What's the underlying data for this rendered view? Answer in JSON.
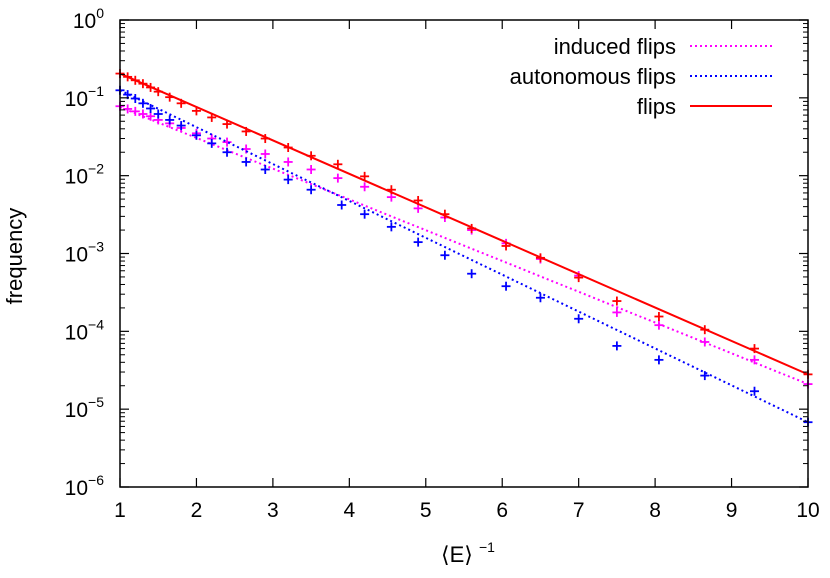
{
  "chart_data": {
    "type": "scatter",
    "title": "",
    "xlabel": "⟨E⟩",
    "xlabel_superscript": "−1",
    "ylabel": "frequency",
    "xlim": [
      1,
      10
    ],
    "ylim": [
      1e-06,
      1
    ],
    "yscale": "log",
    "x_ticks": [
      "1",
      "2",
      "3",
      "4",
      "5",
      "6",
      "7",
      "8",
      "9",
      "10"
    ],
    "y_ticks": [
      {
        "base": "10",
        "exp": "0"
      },
      {
        "base": "10",
        "exp": "−1"
      },
      {
        "base": "10",
        "exp": "−2"
      },
      {
        "base": "10",
        "exp": "−3"
      },
      {
        "base": "10",
        "exp": "−4"
      },
      {
        "base": "10",
        "exp": "−5"
      },
      {
        "base": "10",
        "exp": "−6"
      }
    ],
    "grid": false,
    "legend_position": "top-right",
    "series": [
      {
        "name": "induced flips",
        "color": "#ff00ff",
        "line_style": "dotted",
        "fit": {
          "x": [
            1,
            10
          ],
          "y": [
            0.076,
            2.1e-05
          ]
        },
        "points": [
          [
            1.0,
            0.078
          ],
          [
            1.1,
            0.072
          ],
          [
            1.2,
            0.067
          ],
          [
            1.3,
            0.062
          ],
          [
            1.4,
            0.058
          ],
          [
            1.5,
            0.052
          ],
          [
            1.65,
            0.047
          ],
          [
            1.8,
            0.041
          ],
          [
            2.0,
            0.035
          ],
          [
            2.2,
            0.03
          ],
          [
            2.4,
            0.027
          ],
          [
            2.65,
            0.022
          ],
          [
            2.9,
            0.019
          ],
          [
            3.2,
            0.015
          ],
          [
            3.5,
            0.012
          ],
          [
            3.85,
            0.0093
          ],
          [
            4.2,
            0.0072
          ],
          [
            4.55,
            0.0053
          ],
          [
            4.9,
            0.0038
          ],
          [
            5.25,
            0.0029
          ],
          [
            5.6,
            0.002
          ],
          [
            6.05,
            0.00135
          ],
          [
            6.5,
            0.00085
          ],
          [
            7.0,
            0.00052
          ],
          [
            7.5,
            0.000175
          ],
          [
            8.05,
            0.00012
          ],
          [
            8.65,
            7.3e-05
          ],
          [
            9.3,
            4.3e-05
          ],
          [
            10.0,
            2.1e-05
          ]
        ]
      },
      {
        "name": "autonomous flips",
        "color": "#0000ff",
        "line_style": "dotted",
        "fit": {
          "x": [
            1,
            10
          ],
          "y": [
            0.125,
            6.8e-06
          ]
        },
        "points": [
          [
            1.0,
            0.125
          ],
          [
            1.1,
            0.11
          ],
          [
            1.2,
            0.098
          ],
          [
            1.3,
            0.085
          ],
          [
            1.4,
            0.073
          ],
          [
            1.5,
            0.062
          ],
          [
            1.65,
            0.052
          ],
          [
            1.8,
            0.044
          ],
          [
            2.0,
            0.033
          ],
          [
            2.2,
            0.026
          ],
          [
            2.4,
            0.02
          ],
          [
            2.65,
            0.015
          ],
          [
            2.9,
            0.012
          ],
          [
            3.2,
            0.0089
          ],
          [
            3.5,
            0.0066
          ],
          [
            3.9,
            0.0042
          ],
          [
            4.2,
            0.0032
          ],
          [
            4.55,
            0.0022
          ],
          [
            4.9,
            0.0014
          ],
          [
            5.25,
            0.00095
          ],
          [
            5.6,
            0.00055
          ],
          [
            6.05,
            0.00038
          ],
          [
            6.5,
            0.00027
          ],
          [
            7.0,
            0.000145
          ],
          [
            7.5,
            6.5e-05
          ],
          [
            8.05,
            4.3e-05
          ],
          [
            8.65,
            2.7e-05
          ],
          [
            9.3,
            1.7e-05
          ],
          [
            10.0,
            6.8e-06
          ]
        ]
      },
      {
        "name": "flips",
        "color": "#ff0000",
        "line_style": "solid",
        "fit": {
          "x": [
            1,
            10
          ],
          "y": [
            0.205,
            2.8e-05
          ]
        },
        "points": [
          [
            1.0,
            0.205
          ],
          [
            1.1,
            0.186
          ],
          [
            1.2,
            0.168
          ],
          [
            1.3,
            0.152
          ],
          [
            1.4,
            0.136
          ],
          [
            1.5,
            0.12
          ],
          [
            1.65,
            0.102
          ],
          [
            1.8,
            0.085
          ],
          [
            2.0,
            0.068
          ],
          [
            2.2,
            0.056
          ],
          [
            2.4,
            0.046
          ],
          [
            2.65,
            0.037
          ],
          [
            2.9,
            0.03
          ],
          [
            3.2,
            0.023
          ],
          [
            3.5,
            0.018
          ],
          [
            3.85,
            0.014
          ],
          [
            4.2,
            0.0098
          ],
          [
            4.55,
            0.0066
          ],
          [
            4.9,
            0.0048
          ],
          [
            5.25,
            0.0032
          ],
          [
            5.6,
            0.0021
          ],
          [
            6.05,
            0.00125
          ],
          [
            6.5,
            0.00088
          ],
          [
            7.0,
            0.00049
          ],
          [
            7.5,
            0.000245
          ],
          [
            8.05,
            0.000155
          ],
          [
            8.65,
            0.000105
          ],
          [
            9.3,
            6e-05
          ],
          [
            10.0,
            2.8e-05
          ]
        ]
      }
    ]
  }
}
